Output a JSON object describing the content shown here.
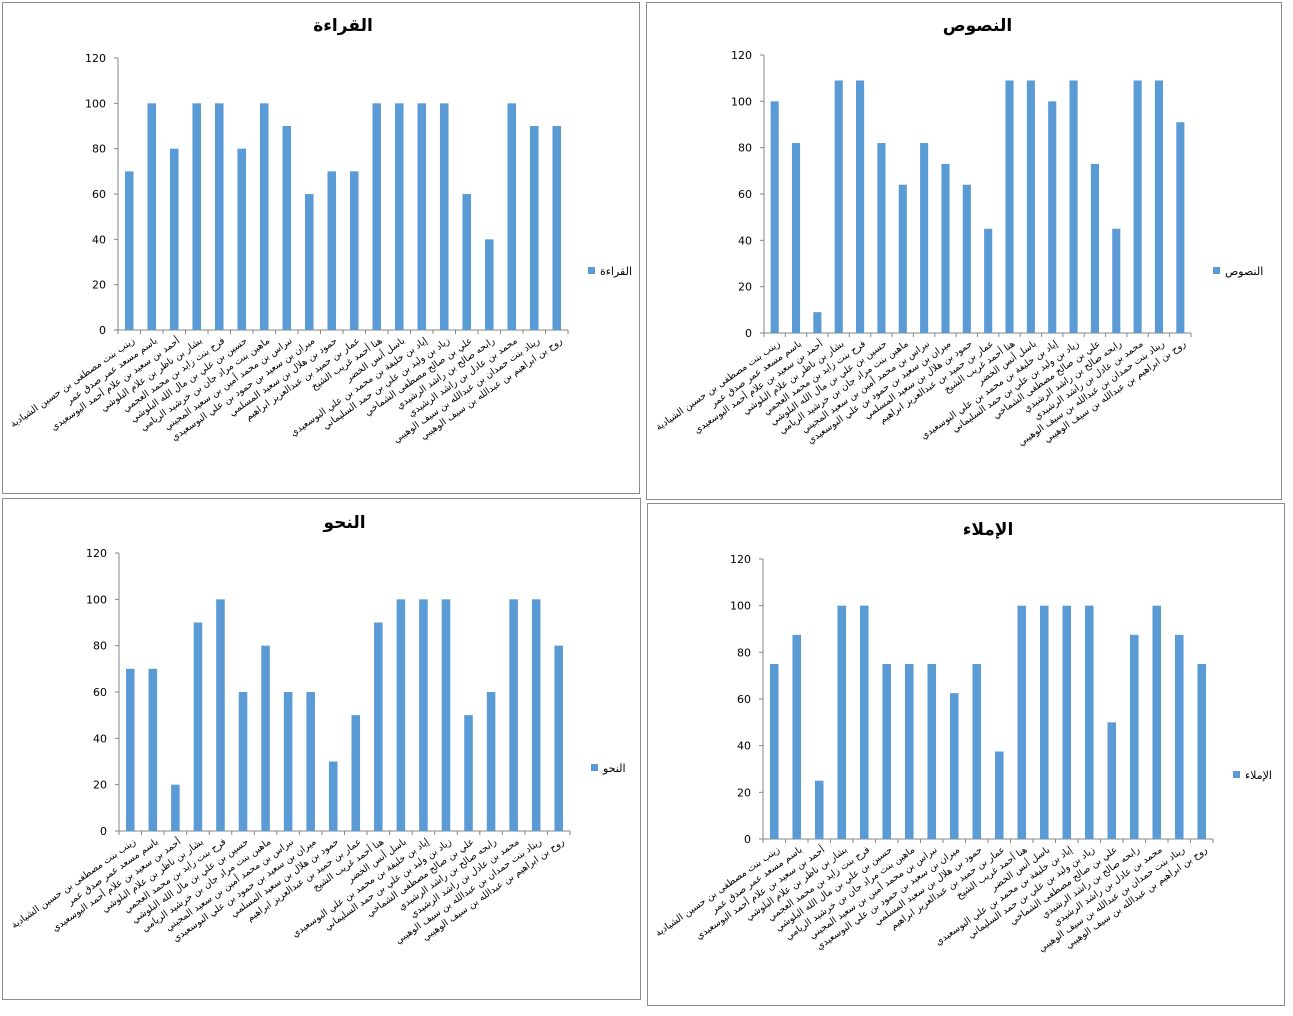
{
  "chart_data": [
    {
      "type": "bar",
      "title": "القراءة",
      "legend": "القراءة",
      "legend_position": "right",
      "color": "#5B9BD5",
      "ylim": [
        0,
        120
      ],
      "yticks": [
        0,
        20,
        40,
        60,
        80,
        100,
        120
      ],
      "categories": [
        "زينب بنت مصطفى بن حسين الشيادية",
        "باسم مسعد عمر صدق عمر",
        "أحمد بن سعيد بن علام أحمد اليوسعيدي",
        "بشار بن ناظر بن علام البلوشي",
        "فرح بنت زايد بن محمد العجمي",
        "حسين بن علي بن مال الله البلوشي",
        "ماهين بنت مراد جان بن خرشيد الريامي",
        "نبراس بن محمد أمين بن سعيد المجيني",
        "ميران بن سعيد بن حمود بن علي البوسعيدي",
        "حمود بن هلال بن سعيد المسلمي",
        "عمار بن حميد بن عبدالعزيز ابراهيم",
        "هنا أحمد غريب الشيخ",
        "باسل أنس الخضر",
        "إياد بن خليفة بن محمد بن علي البوسعيدي",
        "زياد بن وليد بن علي بن حمد السليماني",
        "علي بن صالح مصطفى الشماخي",
        "رابحه صالح بن راشد الرشيدي",
        "محمد بن عادل بن راشد الرشيدي",
        "ريناد بنت حمدان بن عبدالله بن سيف الوهيبي",
        "روح بن ابراهيم بن عبدالله بن سيف الوهيبي"
      ],
      "values": [
        70,
        100,
        80,
        100,
        100,
        80,
        100,
        90,
        60,
        70,
        70,
        100,
        100,
        100,
        100,
        60,
        40,
        100,
        90,
        90
      ]
    },
    {
      "type": "bar",
      "title": "النصوص",
      "legend": "النصوص",
      "legend_position": "right",
      "color": "#5B9BD5",
      "ylim": [
        0,
        120
      ],
      "yticks": [
        0,
        20,
        40,
        60,
        80,
        100,
        120
      ],
      "categories": [
        "زينب بنت مصطفى بن حسين الشيادية",
        "باسم مسعد عمر صدق عمر",
        "أحمد بن سعيد بن علام أحمد اليوسعيدي",
        "بشار بن ناظر بن علام البلوشي",
        "فرح بنت زايد بن محمد العجمي",
        "حسين بن علي بن مال الله البلوشي",
        "ماهين بنت مراد جان بن خرشيد الريامي",
        "نبراس بن محمد أمين بن سعيد المجيني",
        "ميران بن سعيد بن حمود بن علي البوسعيدي",
        "حمود بن هلال بن سعيد المسلمي",
        "عمار بن حميد بن عبدالعزيز ابراهيم",
        "هنا أحمد غريب الشيخ",
        "باسل أنس الخضر",
        "إياد بن خليفة بن محمد بن علي البوسعيدي",
        "زياد بن وليد بن علي بن حمد السليماني",
        "علي بن صالح مصطفى الشماخي",
        "رابحه صالح بن راشد الرشيدي",
        "محمد بن عادل بن راشد الرشيدي",
        "ريناد بنت حمدان بن عبدالله بن سيف الوهيبي",
        "روح بن ابراهيم بن عبدالله بن سيف الوهيبي"
      ],
      "values": [
        100,
        82,
        9,
        109,
        109,
        82,
        64,
        82,
        73,
        64,
        45,
        109,
        109,
        100,
        109,
        73,
        45,
        109,
        109,
        91
      ]
    },
    {
      "type": "bar",
      "title": "النحو",
      "legend": "النحو",
      "legend_position": "right",
      "color": "#5B9BD5",
      "ylim": [
        0,
        120
      ],
      "yticks": [
        0,
        20,
        40,
        60,
        80,
        100,
        120
      ],
      "categories": [
        "زينب بنت مصطفى بن حسين الشيادية",
        "باسم مسعد عمر صدق عمر",
        "أحمد بن سعيد بن علام أحمد اليوسعيدي",
        "بشار بن ناظر بن علام البلوشي",
        "فرح بنت زايد بن محمد العجمي",
        "حسين بن علي بن مال الله البلوشي",
        "ماهين بنت مراد جان بن خرشيد الريامي",
        "نبراس بن محمد أمين بن سعيد المجيني",
        "ميران بن سعيد بن حمود بن علي البوسعيدي",
        "حمود بن هلال بن سعيد المسلمي",
        "عمار بن حميد بن عبدالعزيز ابراهيم",
        "هنا أحمد غريب الشيخ",
        "باسل أنس الخضر",
        "إياد بن خليفة بن محمد بن علي البوسعيدي",
        "زياد بن وليد بن علي بن حمد السليماني",
        "علي بن صالح مصطفى الشماخي",
        "رابحه صالح بن راشد الرشيدي",
        "محمد بن عادل بن راشد الرشيدي",
        "ريناد بنت حمدان بن عبدالله بن سيف الوهيبي",
        "روح بن ابراهيم بن عبدالله بن سيف الوهيبي"
      ],
      "values": [
        70,
        70,
        20,
        90,
        100,
        60,
        80,
        60,
        60,
        30,
        50,
        90,
        100,
        100,
        100,
        50,
        60,
        100,
        100,
        80
      ]
    },
    {
      "type": "bar",
      "title": "الإملاء",
      "legend": "الإملاء",
      "legend_position": "right",
      "color": "#5B9BD5",
      "ylim": [
        0,
        120
      ],
      "yticks": [
        0,
        20,
        40,
        60,
        80,
        100,
        120
      ],
      "categories": [
        "زينب بنت مصطفى بن حسين الشيادية",
        "باسم مسعد عمر صدق عمر",
        "أحمد بن سعيد بن علام أحمد اليوسعيدي",
        "بشار بن ناظر بن علام البلوشي",
        "فرح بنت زايد بن محمد العجمي",
        "حسين بن علي بن مال الله البلوشي",
        "ماهين بنت مراد جان بن خرشيد الريامي",
        "نبراس بن محمد أمين بن سعيد المجيني",
        "ميران بن سعيد بن حمود بن علي البوسعيدي",
        "حمود بن هلال بن سعيد المسلمي",
        "عمار بن حميد بن عبدالعزيز ابراهيم",
        "هنا أحمد غريب الشيخ",
        "باسل أنس الخضر",
        "إياد بن خليفة بن محمد بن علي البوسعيدي",
        "زياد بن وليد بن علي بن حمد السليماني",
        "علي بن صالح مصطفى الشماخي",
        "رابحه صالح بن راشد الرشيدي",
        "محمد بن عادل بن راشد الرشيدي",
        "ريناد بنت حمدان بن عبدالله بن سيف الوهيبي",
        "روح بن ابراهيم بن عبدالله بن سيف الوهيبي"
      ],
      "values": [
        75,
        87.5,
        25,
        100,
        100,
        75,
        75,
        75,
        62.5,
        75,
        37.5,
        100,
        100,
        100,
        100,
        50,
        87.5,
        100,
        87.5,
        75
      ]
    }
  ]
}
